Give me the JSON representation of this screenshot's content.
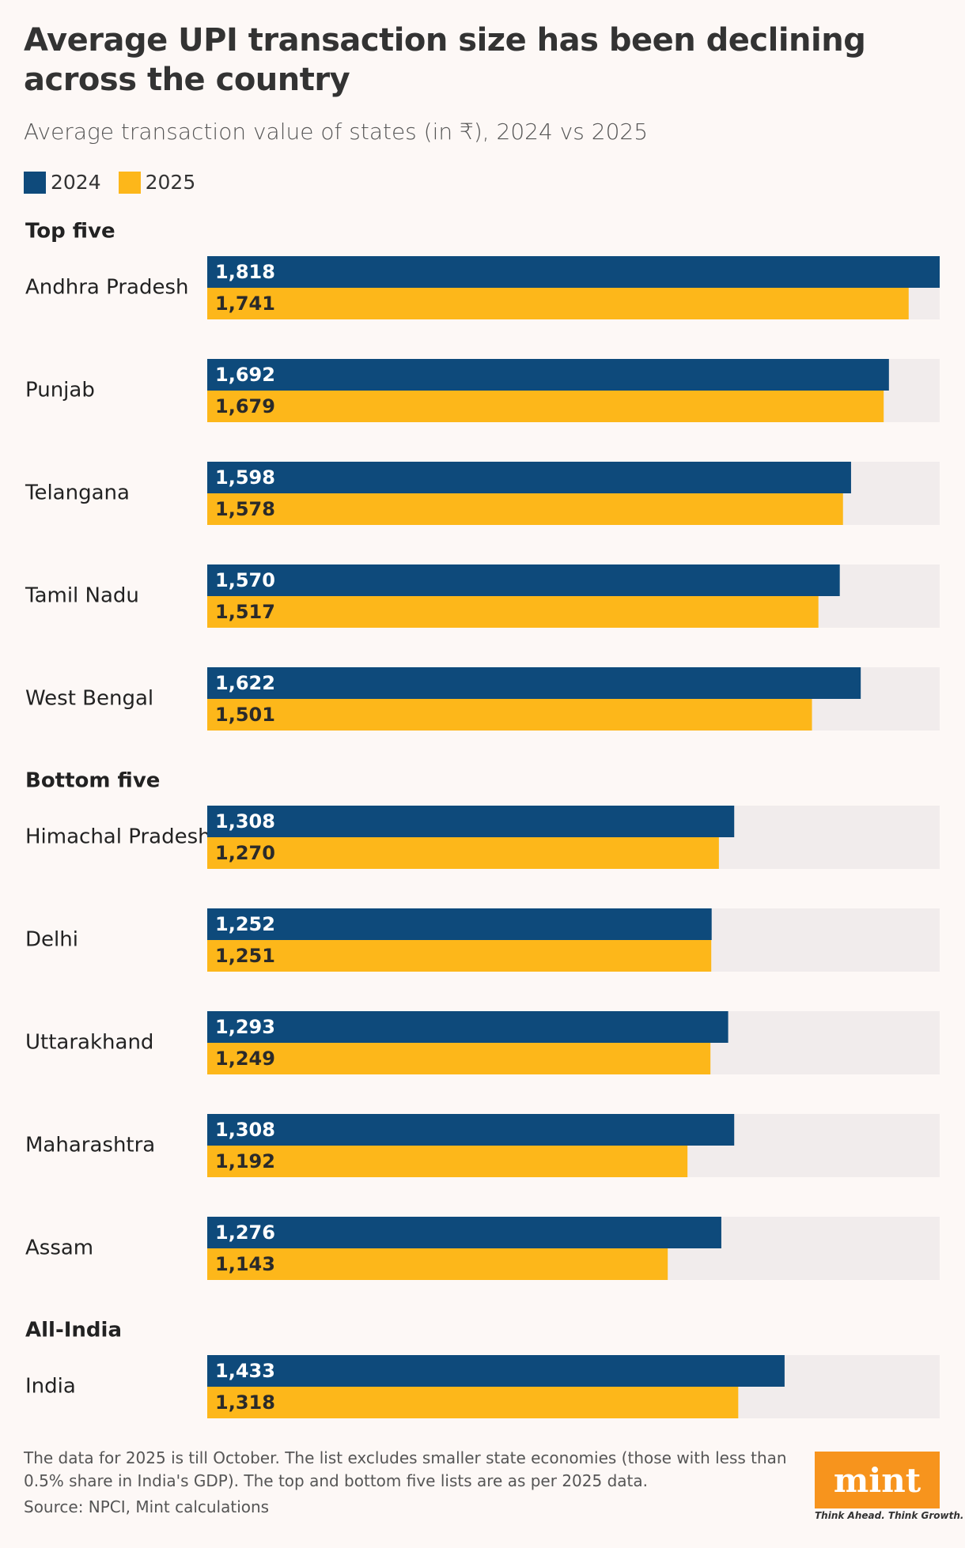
{
  "chart_data": {
    "type": "bar",
    "title": "Average UPI transaction size has been declining across the country",
    "subtitle": "Average transaction value of states (in ₹), 2024 vs 2025",
    "groups": [
      {
        "title": "Top five",
        "categories": [
          "Andhra Pradesh",
          "Punjab",
          "Telangana",
          "Tamil Nadu",
          "West Bengal"
        ]
      },
      {
        "title": "Bottom five",
        "categories": [
          "Himachal Pradesh",
          "Delhi",
          "Uttarakhand",
          "Maharashtra",
          "Assam"
        ]
      },
      {
        "title": "All-India",
        "categories": [
          "India"
        ]
      }
    ],
    "series": [
      {
        "name": "2024",
        "color": "#0e4a7b",
        "values": [
          1818,
          1692,
          1598,
          1570,
          1622,
          1308,
          1252,
          1293,
          1308,
          1276,
          1433
        ],
        "value_labels": [
          "1,818",
          "1,692",
          "1,598",
          "1,570",
          "1,622",
          "1,308",
          "1,252",
          "1,293",
          "1,308",
          "1,276",
          "1,433"
        ]
      },
      {
        "name": "2025",
        "color": "#fdb71a",
        "values": [
          1741,
          1679,
          1578,
          1517,
          1501,
          1270,
          1251,
          1249,
          1192,
          1143,
          1318
        ],
        "value_labels": [
          "1,741",
          "1,679",
          "1,578",
          "1,517",
          "1,501",
          "1,270",
          "1,251",
          "1,249",
          "1,192",
          "1,143",
          "1,318"
        ]
      }
    ],
    "xlim": [
      0,
      1818
    ],
    "notes": "The data for 2025 is till October. The list excludes smaller state economies (those with less than 0.5% share in India's GDP). The top and bottom five lists are as per 2025 data.",
    "source": "Source: NPCI, Mint calculations"
  },
  "logo": {
    "name": "mint",
    "tagline": "Think Ahead. Think Growth."
  }
}
